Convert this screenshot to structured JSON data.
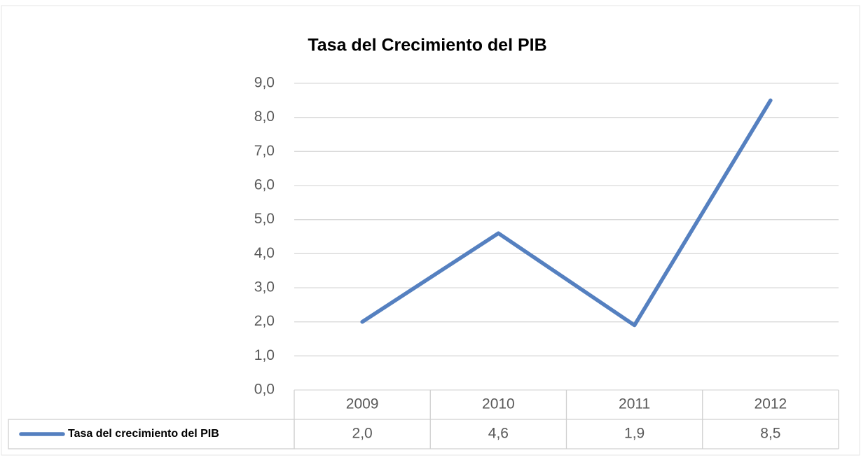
{
  "chart_data": {
    "type": "line",
    "title": "Tasa del Crecimiento del PIB",
    "categories": [
      "2009",
      "2010",
      "2011",
      "2012"
    ],
    "series": [
      {
        "name": "Tasa del crecimiento del PIB",
        "color": "#5580c0",
        "values": [
          2.0,
          4.6,
          1.9,
          8.5
        ],
        "value_labels": [
          "2,0",
          "4,6",
          "1,9",
          "8,5"
        ]
      }
    ],
    "ylim": [
      0,
      9
    ],
    "yticks": [
      {
        "value": 0,
        "label": "0,0"
      },
      {
        "value": 1,
        "label": "1,0"
      },
      {
        "value": 2,
        "label": "2,0"
      },
      {
        "value": 3,
        "label": "3,0"
      },
      {
        "value": 4,
        "label": "4,0"
      },
      {
        "value": 5,
        "label": "5,0"
      },
      {
        "value": 6,
        "label": "6,0"
      },
      {
        "value": 7,
        "label": "7,0"
      },
      {
        "value": 8,
        "label": "8,0"
      },
      {
        "value": 9,
        "label": "9,0"
      }
    ],
    "grid": true
  }
}
